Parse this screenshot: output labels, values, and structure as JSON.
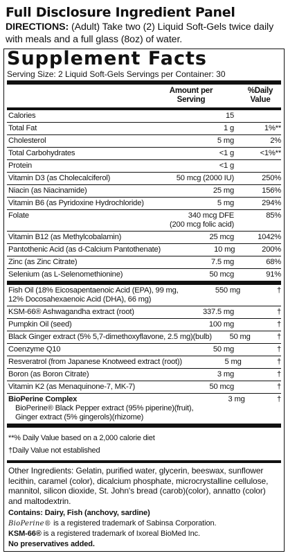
{
  "heading": "Full Disclosure Ingredient Panel",
  "directions": {
    "label": "DIRECTIONS:",
    "text": " (Adult) Take two (2) Liquid Soft-Gels twice daily with meals and a full glass (8oz) of water."
  },
  "supplement_facts": {
    "title": "Supplement Facts",
    "serving_size": "Serving Size:  2 Liquid Soft-Gels   Servings per Container:  30",
    "col_amount_1": "Amount per",
    "col_amount_2": "Serving",
    "col_dv_1": "%Daily",
    "col_dv_2": "Value",
    "section1": [
      {
        "name": "Calories",
        "amount": "15",
        "dv": ""
      },
      {
        "name": "Total Fat",
        "amount": "1 g",
        "dv": "1%**"
      },
      {
        "name": "Cholesterol",
        "amount": "5 mg",
        "dv": "2%"
      },
      {
        "name": "Total Carbohydrates",
        "amount": "<1 g",
        "dv": "<1%**"
      },
      {
        "name": "Protein",
        "amount": "<1 g",
        "dv": ""
      },
      {
        "name": "Vitamin D3 (as Cholecalciferol)",
        "amount": "50 mcg (2000 IU)",
        "dv": "250%"
      },
      {
        "name": "Niacin (as Niacinamide)",
        "amount": "25 mg",
        "dv": "156%"
      },
      {
        "name": "Vitamin B6 (as Pyridoxine Hydrochloride)",
        "amount": "5 mg",
        "dv": "294%"
      },
      {
        "name": "Folate",
        "amount": "340 mcg DFE",
        "amount2": "(200 mcg folic acid)",
        "dv": "85%"
      },
      {
        "name": "Vitamin B12 (as Methylcobalamin)",
        "amount": "25 mcg",
        "dv": "1042%"
      },
      {
        "name": "Pantothenic Acid (as d-Calcium Pantothenate)",
        "amount": "10 mg",
        "dv": "200%"
      },
      {
        "name": "Zinc (as Zinc Citrate)",
        "amount": "7.5 mg",
        "dv": "68%"
      },
      {
        "name": "Selenium (as L-Selenomethionine)",
        "amount": "50 mcg",
        "dv": "91%"
      }
    ],
    "section2": [
      {
        "name": "Fish Oil (18% Eicosapentaenoic Acid (EPA), 99 mg,",
        "name2": "12% Docosahexaenoic Acid (DHA), 66 mg)",
        "amount": "550 mg",
        "dv": "†"
      },
      {
        "name": "KSM-66® Ashwagandha extract (root)",
        "amount": "337.5 mg",
        "dv": "†"
      },
      {
        "name": "Pumpkin Oil (seed)",
        "amount": "100 mg",
        "dv": "†"
      },
      {
        "name": "Black Ginger extract (5% 5,7-dimethoxyflavone, 2.5 mg)(bulb)",
        "amount": "50 mg",
        "dv": "†"
      },
      {
        "name": "Coenzyme Q10",
        "amount": "50 mg",
        "dv": "†"
      },
      {
        "name": "Resveratrol (from Japanese Knotweed extract (root))",
        "amount": "5 mg",
        "dv": "†"
      },
      {
        "name": "Boron (as Boron Citrate)",
        "amount": "3 mg",
        "dv": "†"
      },
      {
        "name": "Vitamin K2 (as Menaquinone-7, MK-7)",
        "amount": "50 mcg",
        "dv": "†"
      },
      {
        "name": "BioPerine Complex",
        "name2": "BioPerine® Black Pepper extract (95% piperine)(fruit),",
        "name3": "Ginger extract (5% gingerols)(rhizome)",
        "amount": "3 mg",
        "dv": "†"
      }
    ],
    "note1": "**% Daily Value based on a 2,000 calorie diet",
    "note2": "†Daily Value not established"
  },
  "other": {
    "ingredients": "Other Ingredients: Gelatin, purified water, glycerin, beeswax, sunflower lecithin, caramel (color), dicalcium phosphate, microcrystalline cellulose, mannitol, silicon dioxide, St. John's bread (carob)(color), annatto (color) and maltodextrin.",
    "contains": "Contains: Dairy, Fish (anchovy, sardine)",
    "bioperine_logo": "BioPerine®",
    "bioperine_tm": " is a registered trademark of Sabinsa Corporation.",
    "ksm_label": "KSM-66®",
    "ksm_tm": " is a registered trademark of Ixoreal BioMed Inc.",
    "no_preservatives": "No preservatives added."
  }
}
